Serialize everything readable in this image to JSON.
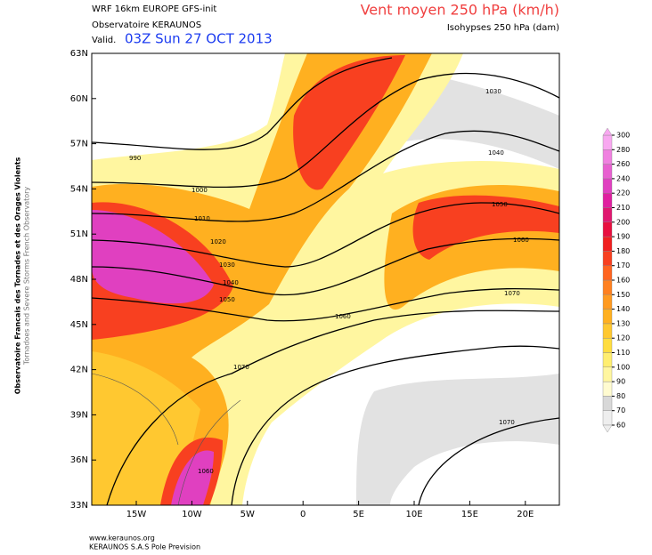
{
  "header": {
    "model": "WRF 16km EUROPE  GFS-init",
    "org": "Observatoire KERAUNOS",
    "valid_label": "Valid.",
    "valid_time": "03Z Sun 27 OCT 2013",
    "title": "Vent moyen 250 hPa (km/h)",
    "subtitle": "Isohypses 250 hPa (dam)"
  },
  "side": {
    "line1": "Observatoire Francais des Tornades et des Orages Violents",
    "line2": "Tornadoes and Severe Storms French Observatory"
  },
  "map": {
    "lat_labels": [
      "63N",
      "60N",
      "57N",
      "54N",
      "51N",
      "48N",
      "45N",
      "42N",
      "39N",
      "36N",
      "33N"
    ],
    "lon_labels": [
      "15W",
      "10W",
      "5W",
      "0",
      "5E",
      "10E",
      "15E",
      "20E"
    ],
    "contour_labels": [
      "990",
      "1000",
      "1010",
      "1020",
      "1030",
      "1040",
      "1050",
      "1030",
      "1040",
      "1050",
      "1060",
      "1060",
      "1070",
      "1070",
      "1060",
      "1070"
    ]
  },
  "legend": {
    "levels": [
      60,
      70,
      80,
      90,
      100,
      110,
      120,
      130,
      140,
      150,
      160,
      170,
      180,
      190,
      200,
      210,
      220,
      240,
      260,
      280,
      300
    ],
    "colors": [
      "#eeeeee",
      "#d8d8d8",
      "#fffbd0",
      "#fff6a0",
      "#ffee70",
      "#ffdd40",
      "#ffc830",
      "#ffb020",
      "#ff9a20",
      "#ff8020",
      "#ff6420",
      "#f84020",
      "#f02020",
      "#e81040",
      "#e01870",
      "#e020a0",
      "#e040c0",
      "#e860d0",
      "#f080e0",
      "#f8a8f0"
    ]
  },
  "footer": {
    "url": "www.keraunos.org",
    "company": "KERAUNOS S.A.S Pole Prevision"
  }
}
